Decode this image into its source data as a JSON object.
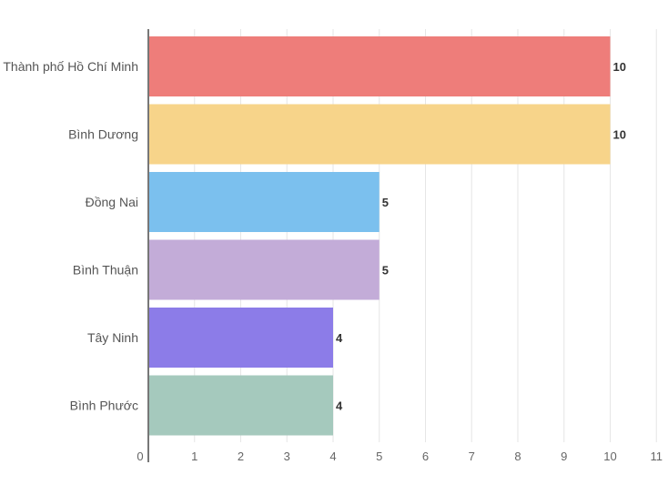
{
  "chart_data": {
    "type": "bar",
    "orientation": "horizontal",
    "categories": [
      "Thành phố Hồ Chí Minh",
      "Bình Dương",
      "Đồng Nai",
      "Bình Thuận",
      "Tây Ninh",
      "Bình Phước"
    ],
    "values": [
      10,
      10,
      5,
      5,
      4,
      4
    ],
    "colors": [
      "#ee7d7a",
      "#f7d48a",
      "#7bc0ee",
      "#c3acd8",
      "#8c7ce8",
      "#a5c9bd"
    ],
    "title": "",
    "xlabel": "",
    "ylabel": "",
    "xlim": [
      0,
      11
    ],
    "x_ticks": [
      "0",
      "1",
      "2",
      "3",
      "4",
      "5",
      "6",
      "7",
      "8",
      "9",
      "10",
      "11"
    ],
    "grid": "vertical",
    "legend": "none",
    "data_labels": [
      "10",
      "10",
      "5",
      "5",
      "4",
      "4"
    ]
  }
}
